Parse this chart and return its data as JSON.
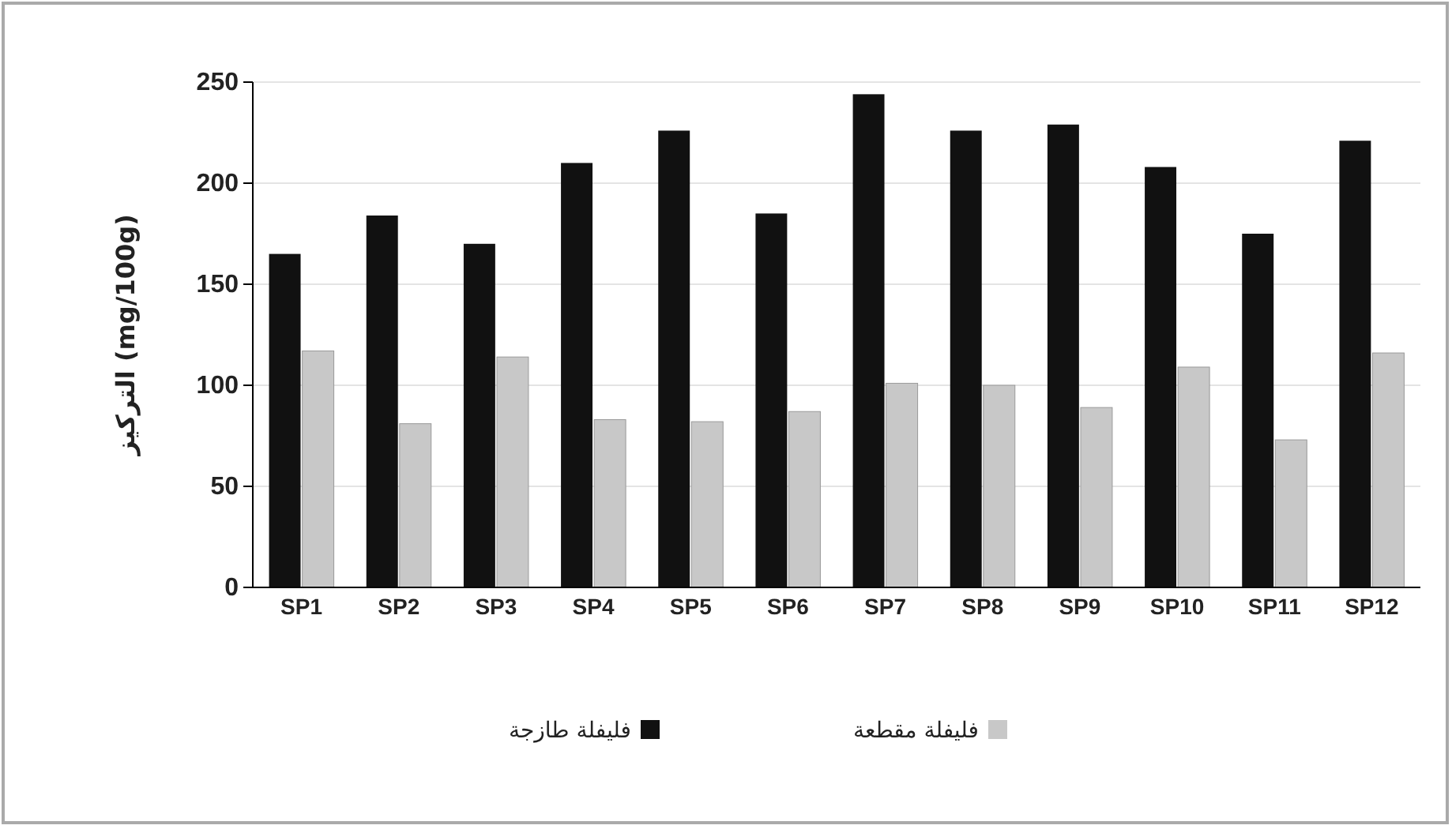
{
  "chart_data": {
    "type": "bar",
    "ylabel": "التركيز (mg/100g)",
    "categories": [
      "SP1",
      "SP2",
      "SP3",
      "SP4",
      "SP5",
      "SP6",
      "SP7",
      "SP8",
      "SP9",
      "SP10",
      "SP11",
      "SP12"
    ],
    "series": [
      {
        "name": "فليفلة طازجة",
        "color": "#111111",
        "values": [
          165,
          184,
          170,
          210,
          226,
          185,
          244,
          226,
          229,
          208,
          175,
          221
        ]
      },
      {
        "name": "فليفلة مقطعة",
        "color": "#c8c8c8",
        "values": [
          117,
          81,
          114,
          83,
          82,
          87,
          101,
          100,
          89,
          109,
          73,
          116
        ]
      }
    ],
    "ylim": [
      0,
      250
    ],
    "yticks": [
      0,
      50,
      100,
      150,
      200,
      250
    ],
    "grid": "y",
    "legend": "bottom"
  }
}
